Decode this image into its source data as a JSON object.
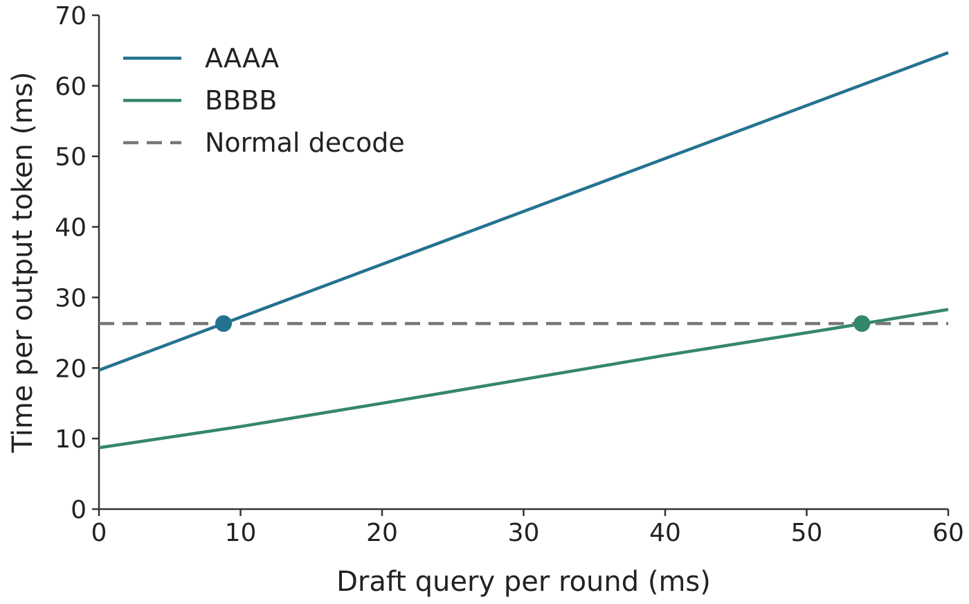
{
  "chart_data": {
    "type": "line",
    "title": "",
    "xlabel": "Draft query per round (ms)",
    "ylabel": "Time per output token (ms)",
    "xlim": [
      0,
      60
    ],
    "ylim": [
      0,
      70
    ],
    "xticks": [
      0,
      10,
      20,
      30,
      40,
      50,
      60
    ],
    "yticks": [
      0,
      10,
      20,
      30,
      40,
      50,
      60,
      70
    ],
    "grid": false,
    "legend_position": "top-left",
    "series": [
      {
        "name": "AAAA",
        "color": "#25728f",
        "style": "solid",
        "x": [
          0,
          60
        ],
        "y": [
          19.7,
          64.7
        ],
        "marker": {
          "x": 8.8,
          "y": 26.3
        }
      },
      {
        "name": "BBBB",
        "color": "#35876a",
        "style": "solid",
        "x": [
          0,
          10,
          20,
          30,
          40,
          50,
          54,
          60
        ],
        "y": [
          8.7,
          11.7,
          15.0,
          18.4,
          21.8,
          25.0,
          26.3,
          28.3
        ],
        "marker": {
          "x": 53.9,
          "y": 26.3
        }
      },
      {
        "name": "Normal decode",
        "color": "#777777",
        "style": "dashed",
        "x": [
          0,
          60
        ],
        "y": [
          26.3,
          26.3
        ]
      }
    ]
  }
}
